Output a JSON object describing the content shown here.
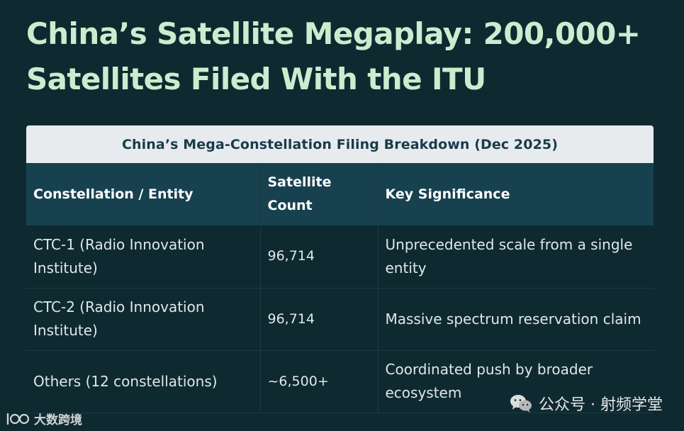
{
  "heading": "China’s Satellite Megaplay: 200,000+ Satellites Filed With the ITU",
  "table": {
    "caption": "China’s Mega-Constellation Filing Breakdown (Dec 2025)",
    "headers": {
      "entity": "Constellation / Entity",
      "count": "Satellite Count",
      "significance": "Key Significance"
    },
    "rows": [
      {
        "entity": "CTC-1 (Radio Innovation Institute)",
        "count": "96,714",
        "significance": "Unprecedented scale from a single entity"
      },
      {
        "entity": "CTC-2 (Radio Innovation Institute)",
        "count": "96,714",
        "significance": "Massive spectrum reservation claim"
      },
      {
        "entity": "Others (12 constellations)",
        "count": "~6,500+",
        "significance": "Coordinated push by broader ecosystem"
      }
    ]
  },
  "watermarks": {
    "left_text": "大数跨境",
    "left_icon": "brand-logo-icon",
    "right_text": "公众号 · 射频学堂",
    "right_icon": "wechat-icon"
  },
  "colors": {
    "background": "#0e2a30",
    "title": "#cdeccf",
    "caption_bg": "#e7ebee",
    "header_bg": "#17414f"
  }
}
